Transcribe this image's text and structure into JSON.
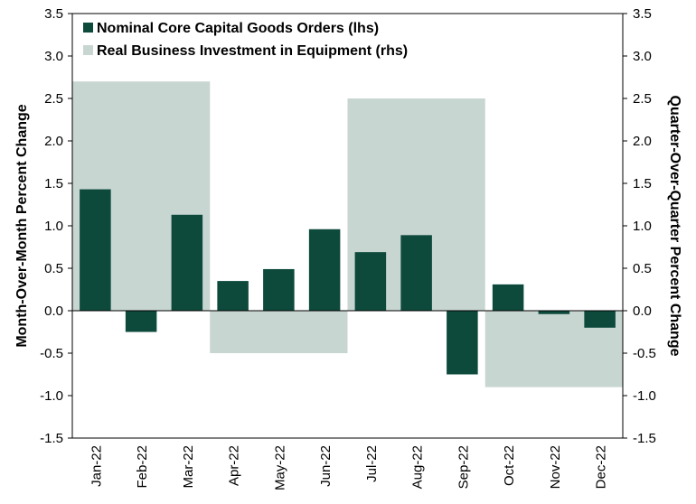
{
  "chart_data": {
    "type": "bar",
    "categories": [
      "Jan-22",
      "Feb-22",
      "Mar-22",
      "Apr-22",
      "May-22",
      "Jun-22",
      "Jul-22",
      "Aug-22",
      "Sep-22",
      "Oct-22",
      "Nov-22",
      "Dec-22"
    ],
    "series": [
      {
        "name": "Nominal Core Capital Goods Orders (lhs)",
        "axis": "left",
        "color": "#0d4a3c",
        "values": [
          1.43,
          -0.25,
          1.13,
          0.35,
          0.49,
          0.96,
          0.69,
          0.89,
          -0.75,
          0.31,
          -0.04,
          -0.2
        ]
      },
      {
        "name": "Real Business Investment in Equipment (rhs)",
        "axis": "right",
        "color": "#c8d6d2",
        "quarters": [
          {
            "start": "Jan-22",
            "end": "Mar-22",
            "value": 2.7
          },
          {
            "start": "Apr-22",
            "end": "Jun-22",
            "value": -0.5
          },
          {
            "start": "Jul-22",
            "end": "Sep-22",
            "value": 2.5
          },
          {
            "start": "Oct-22",
            "end": "Dec-22",
            "value": -0.9
          }
        ]
      }
    ],
    "ylabel": "Month-Over-Month Percent Change",
    "y2label": "Quarter-Over-Quarter Percent Change",
    "ylim": [
      -1.5,
      3.5
    ],
    "y2lim": [
      -1.5,
      3.5
    ],
    "yticks": [
      "3.5",
      "3.0",
      "2.5",
      "2.0",
      "1.5",
      "1.0",
      "0.5",
      "0.0",
      "-0.5",
      "-1.0",
      "-1.5"
    ],
    "legend_position": "top-left",
    "grid": false
  }
}
